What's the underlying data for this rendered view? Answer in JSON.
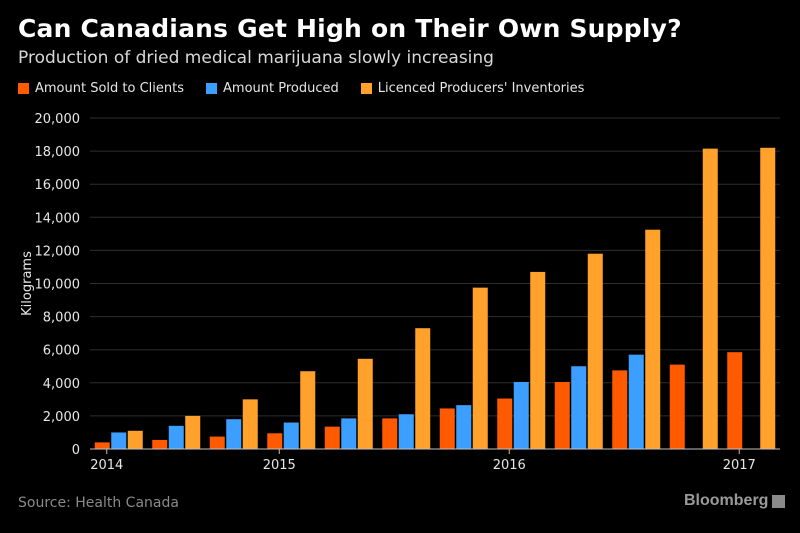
{
  "header": {
    "title": "Can Canadians Get High on Their Own Supply?",
    "subtitle": "Production of dried medical marijuana slowly increasing"
  },
  "legend": [
    {
      "label": "Amount Sold to Clients",
      "color": "#ff5a00"
    },
    {
      "label": "Amount Produced",
      "color": "#3c9fff"
    },
    {
      "label": "Licenced Producers' Inventories",
      "color": "#ffa12b"
    }
  ],
  "footer": {
    "source": "Source: Health Canada",
    "brand": "Bloomberg"
  },
  "chart_data": {
    "type": "bar",
    "ylabel": "Kilograms",
    "xlabel": "",
    "ylim": [
      0,
      20000
    ],
    "yticks": [
      "0",
      "2,000",
      "4,000",
      "6,000",
      "8,000",
      "10,000",
      "12,000",
      "14,000",
      "16,000",
      "18,000",
      "20,000"
    ],
    "ytick_values": [
      0,
      2000,
      4000,
      6000,
      8000,
      10000,
      12000,
      14000,
      16000,
      18000,
      20000
    ],
    "xticks": [
      {
        "label": "2014",
        "index": 0
      },
      {
        "label": "2015",
        "index": 3
      },
      {
        "label": "2016",
        "index": 7
      },
      {
        "label": "2017",
        "index": 11
      }
    ],
    "periods": 12,
    "grid": true,
    "legend_position": "top-left",
    "series": [
      {
        "name": "Amount Sold to Clients",
        "color": "#ff5a00",
        "values": [
          400,
          550,
          750,
          950,
          1350,
          1850,
          2450,
          3050,
          4050,
          4750,
          5100,
          5850
        ]
      },
      {
        "name": "Amount Produced",
        "color": "#3c9fff",
        "values": [
          1000,
          1400,
          1800,
          1600,
          1850,
          2100,
          2650,
          4050,
          5000,
          5700,
          null,
          null
        ]
      },
      {
        "name": "Licenced Producers' Inventories",
        "color": "#ffa12b",
        "values": [
          1100,
          2000,
          3000,
          4700,
          5450,
          7300,
          9750,
          10700,
          11800,
          13250,
          18150,
          18200
        ]
      }
    ]
  }
}
